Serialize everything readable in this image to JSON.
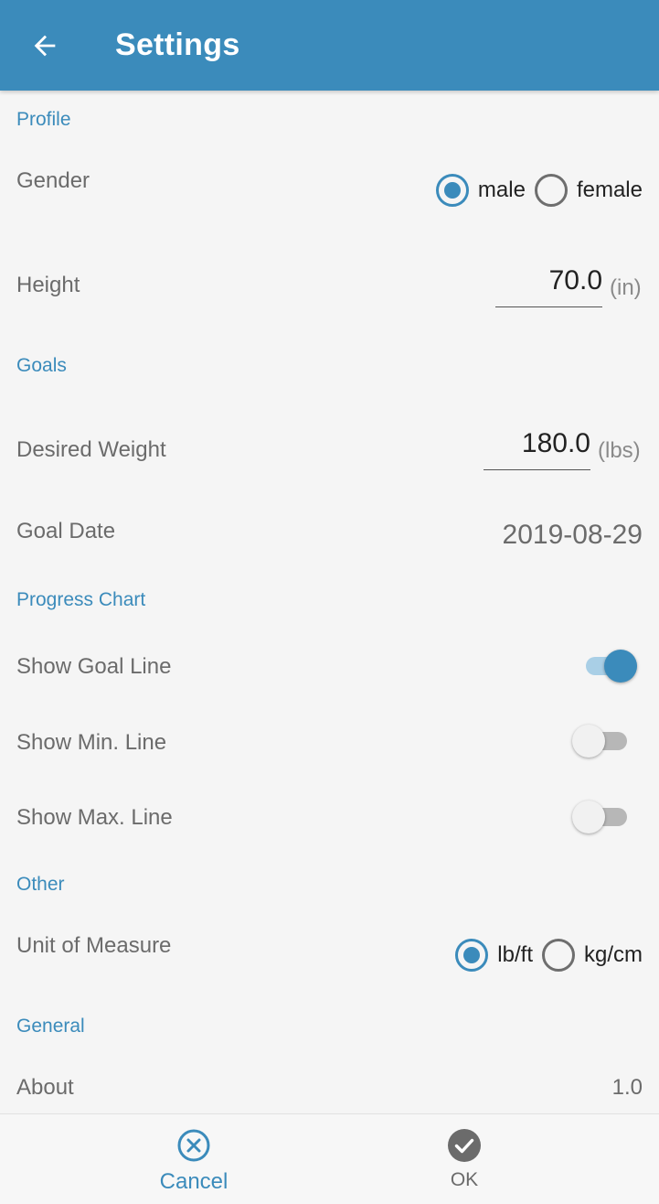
{
  "app_bar": {
    "title": "Settings"
  },
  "sections": {
    "profile": "Profile",
    "goals": "Goals",
    "progress_chart": "Progress Chart",
    "other": "Other",
    "general": "General"
  },
  "profile": {
    "gender_label": "Gender",
    "gender_options": [
      "male",
      "female"
    ],
    "gender_selected": "male",
    "height_label": "Height",
    "height_value": "70.0",
    "height_unit": "(in)"
  },
  "goals": {
    "desired_weight_label": "Desired Weight",
    "desired_weight_value": "180.0",
    "desired_weight_unit": "(lbs)",
    "goal_date_label": "Goal Date",
    "goal_date_value": "2019-08-29"
  },
  "progress_chart": {
    "show_goal_line_label": "Show Goal Line",
    "show_goal_line": true,
    "show_min_line_label": "Show Min. Line",
    "show_min_line": false,
    "show_max_line_label": "Show Max. Line",
    "show_max_line": false
  },
  "other": {
    "unit_label": "Unit of Measure",
    "unit_options": [
      "lb/ft",
      "kg/cm"
    ],
    "unit_selected": "lb/ft"
  },
  "general": {
    "about_label": "About",
    "about_value": "1.0"
  },
  "bottom_bar": {
    "cancel_label": "Cancel",
    "ok_label": "OK"
  },
  "icons": {
    "back": "arrow-left-icon",
    "cancel": "circle-x-icon",
    "ok": "check-circle-icon"
  },
  "colors": {
    "accent": "#3b8bbb",
    "background": "#f5f5f5",
    "text_secondary": "#6b6b6b"
  }
}
